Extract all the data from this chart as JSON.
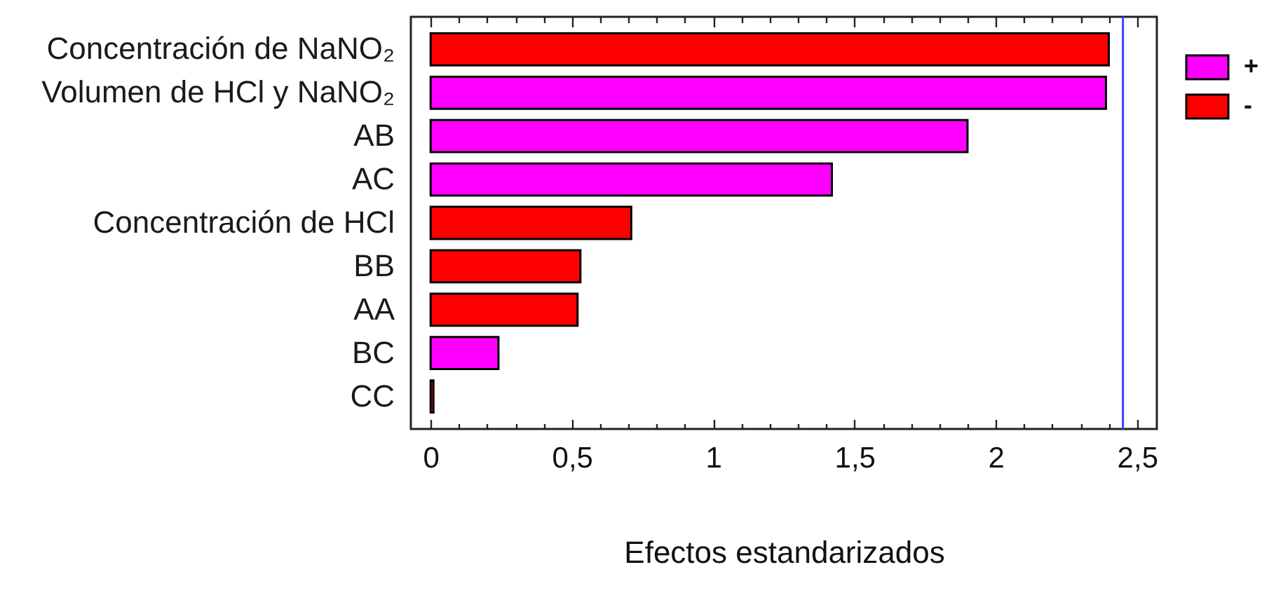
{
  "chart_data": {
    "type": "bar",
    "orientation": "horizontal",
    "xlabel": "Efectos estandarizados",
    "categories": [
      "Concentración de NaNO₂",
      "Volumen de HCl y NaNO₂",
      "AB",
      "AC",
      "Concentración de HCl",
      "BB",
      "AA",
      "BC",
      "CC"
    ],
    "series": [
      {
        "name": "+",
        "color": "#ff00ff",
        "values": [
          null,
          2.39,
          1.9,
          1.42,
          null,
          null,
          null,
          0.24,
          null
        ]
      },
      {
        "name": "-",
        "color": "#ff0000",
        "values": [
          2.4,
          null,
          null,
          null,
          0.71,
          0.53,
          0.52,
          null,
          0.01
        ]
      }
    ],
    "xlim": [
      -0.07,
      2.57
    ],
    "xticks": [
      0,
      {
        "value": 0.1,
        "label": null
      },
      {
        "value": 0.2,
        "label": null
      },
      {
        "value": 0.3,
        "label": null
      },
      {
        "value": 0.4,
        "label": null
      },
      {
        "value": 0.5,
        "label": "0,5"
      },
      {
        "value": 0.6,
        "label": null
      },
      {
        "value": 0.7,
        "label": null
      },
      {
        "value": 0.8,
        "label": null
      },
      {
        "value": 0.9,
        "label": null
      },
      1,
      {
        "value": 1.1,
        "label": null
      },
      {
        "value": 1.2,
        "label": null
      },
      {
        "value": 1.3,
        "label": null
      },
      {
        "value": 1.4,
        "label": null
      },
      {
        "value": 1.5,
        "label": "1,5"
      },
      {
        "value": 1.6,
        "label": null
      },
      {
        "value": 1.7,
        "label": null
      },
      {
        "value": 1.8,
        "label": null
      },
      {
        "value": 1.9,
        "label": null
      },
      2,
      {
        "value": 2.1,
        "label": null
      },
      {
        "value": 2.2,
        "label": null
      },
      {
        "value": 2.3,
        "label": null
      },
      {
        "value": 2.4,
        "label": null
      },
      {
        "value": 2.5,
        "label": "2,5"
      }
    ],
    "ref_lines": [
      {
        "axis": "x",
        "value": 2.45,
        "color": "#3f3fff"
      }
    ],
    "legend": "top right",
    "grid": false
  }
}
